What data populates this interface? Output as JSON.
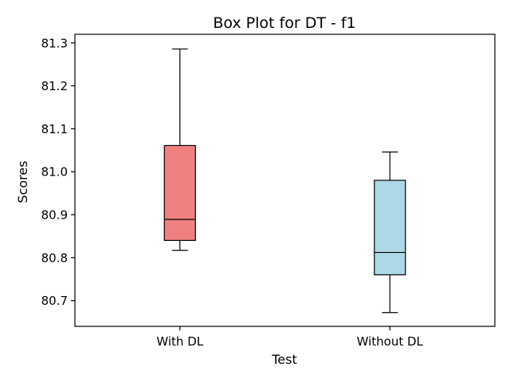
{
  "chart_data": {
    "type": "box",
    "title": "Box Plot for DT - f1",
    "xlabel": "Test",
    "ylabel": "Scores",
    "ylim": [
      80.64,
      81.32
    ],
    "yticks": [
      {
        "value": 80.7,
        "label": "80.7"
      },
      {
        "value": 80.8,
        "label": "80.8"
      },
      {
        "value": 80.9,
        "label": "80.9"
      },
      {
        "value": 81.0,
        "label": "81.0"
      },
      {
        "value": 81.1,
        "label": "81.1"
      },
      {
        "value": 81.2,
        "label": "81.2"
      },
      {
        "value": 81.3,
        "label": "81.3"
      }
    ],
    "categories": [
      "With DL",
      "Without DL"
    ],
    "boxes": [
      {
        "category": "With DL",
        "min": 80.817,
        "q1": 80.84,
        "median": 80.889,
        "q3": 81.061,
        "max": 81.286,
        "color": "#f08080"
      },
      {
        "category": "Without DL",
        "min": 80.672,
        "q1": 80.76,
        "median": 80.812,
        "q3": 80.98,
        "max": 81.046,
        "color": "#add8e6"
      }
    ],
    "grid": false,
    "legend": "none"
  }
}
